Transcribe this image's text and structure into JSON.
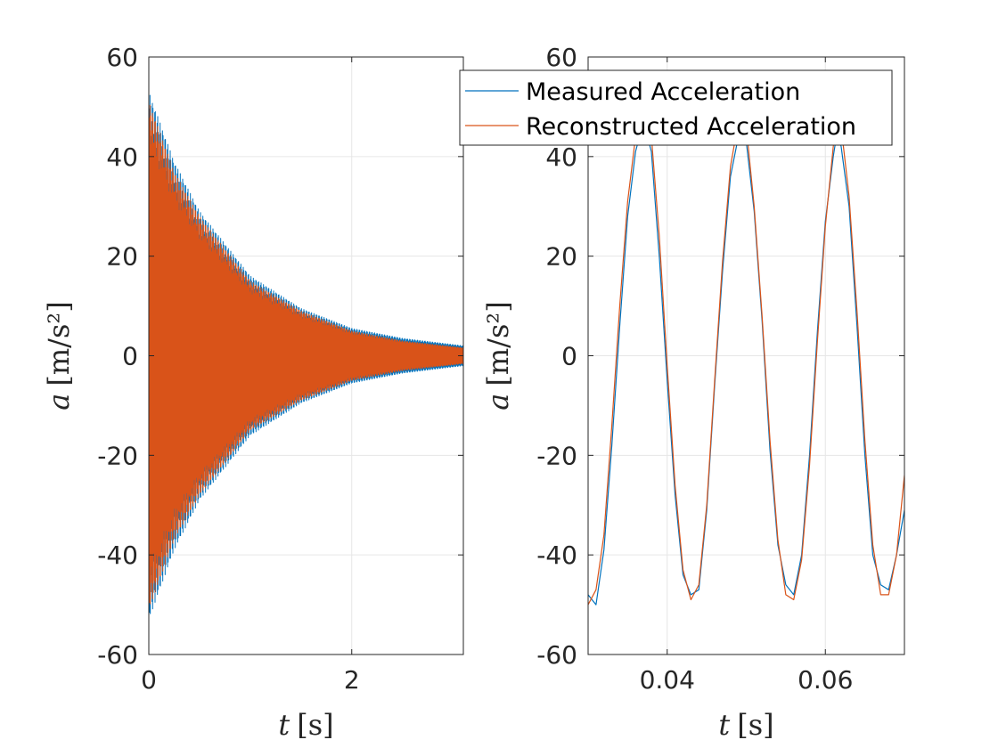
{
  "chart_data": [
    {
      "type": "line",
      "xlabel_var": "t",
      "xlabel_unit": "[s]",
      "ylabel_var": "a",
      "ylabel_unit": "[m/s²]",
      "xlim": [
        0,
        3.1
      ],
      "ylim": [
        -60,
        60
      ],
      "xticks": [
        0,
        2
      ],
      "xtick_labels": [
        "0",
        "2"
      ],
      "yticks": [
        -60,
        -40,
        -20,
        0,
        20,
        40,
        60
      ],
      "ytick_labels": [
        "-60",
        "-40",
        "-20",
        "0",
        "20",
        "40",
        "60"
      ],
      "grid": true,
      "series": [
        {
          "name": "Measured Acceleration",
          "color": "#0072BD",
          "envelope": {
            "t": [
              0,
              0.25,
              0.5,
              1,
              1.5,
              2,
              2.5,
              3.1
            ],
            "a": [
              53,
              39,
              29,
              16,
              9.5,
              5.5,
              3.5,
              2
            ]
          }
        },
        {
          "name": "Reconstructed Acceleration",
          "color": "#D95319",
          "envelope": {
            "t": [
              0,
              0.25,
              0.5,
              1,
              1.5,
              2,
              2.5,
              3.1
            ],
            "a": [
              51,
              37,
              28,
              15,
              9,
              5,
              3,
              1.6
            ]
          }
        }
      ]
    },
    {
      "type": "line",
      "xlabel_var": "t",
      "xlabel_unit": "[s]",
      "ylabel_var": "a",
      "ylabel_unit": "[m/s²]",
      "xlim": [
        0.03,
        0.07
      ],
      "ylim": [
        -60,
        60
      ],
      "xticks": [
        0.04,
        0.06
      ],
      "xtick_labels": [
        "0.04",
        "0.06"
      ],
      "yticks": [
        -60,
        -40,
        -20,
        0,
        20,
        40,
        60
      ],
      "ytick_labels": [
        "-60",
        "-40",
        "-20",
        "0",
        "20",
        "40",
        "60"
      ],
      "grid": true,
      "legend_position": "top-right",
      "series": [
        {
          "name": "Measured Acceleration",
          "color": "#0072BD",
          "x": [
            0.03,
            0.031,
            0.032,
            0.033,
            0.034,
            0.035,
            0.036,
            0.037,
            0.0375,
            0.038,
            0.039,
            0.04,
            0.041,
            0.042,
            0.043,
            0.044,
            0.045,
            0.046,
            0.047,
            0.048,
            0.049,
            0.0495,
            0.05,
            0.051,
            0.052,
            0.053,
            0.054,
            0.055,
            0.056,
            0.057,
            0.058,
            0.059,
            0.06,
            0.061,
            0.0615,
            0.062,
            0.063,
            0.064,
            0.065,
            0.066,
            0.067,
            0.068,
            0.069,
            0.07
          ],
          "y": [
            -48,
            -50,
            -39,
            -18,
            6,
            28,
            41,
            47,
            44,
            41,
            20,
            -5,
            -28,
            -44,
            -48,
            -47,
            -31,
            -6,
            17,
            36,
            44,
            47,
            43,
            29,
            7,
            -19,
            -38,
            -46,
            -48,
            -40,
            -20,
            5,
            27,
            40,
            45,
            42,
            30,
            6,
            -20,
            -40,
            -46,
            -47,
            -40,
            -31
          ]
        },
        {
          "name": "Reconstructed Acceleration",
          "color": "#D95319",
          "x": [
            0.03,
            0.031,
            0.032,
            0.033,
            0.034,
            0.035,
            0.036,
            0.037,
            0.0375,
            0.038,
            0.039,
            0.04,
            0.041,
            0.042,
            0.043,
            0.044,
            0.045,
            0.046,
            0.047,
            0.048,
            0.049,
            0.0495,
            0.05,
            0.051,
            0.052,
            0.053,
            0.054,
            0.055,
            0.056,
            0.057,
            0.058,
            0.059,
            0.06,
            0.061,
            0.0615,
            0.062,
            0.063,
            0.064,
            0.065,
            0.066,
            0.067,
            0.068,
            0.069,
            0.07
          ],
          "y": [
            -50,
            -47,
            -36,
            -14,
            10,
            31,
            44,
            48,
            48,
            44,
            24,
            -2,
            -26,
            -43,
            -49,
            -46,
            -30,
            -5,
            19,
            38,
            47,
            48,
            46,
            30,
            8,
            -17,
            -37,
            -48,
            -49,
            -41,
            -22,
            3,
            26,
            42,
            48,
            46,
            32,
            9,
            -17,
            -38,
            -48,
            -48,
            -40,
            -24
          ]
        }
      ]
    }
  ]
}
